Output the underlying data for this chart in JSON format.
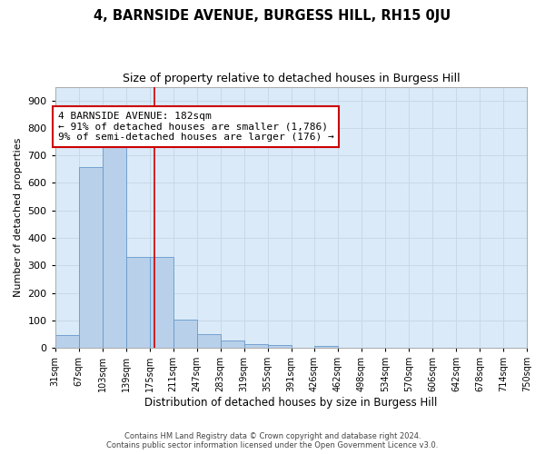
{
  "title": "4, BARNSIDE AVENUE, BURGESS HILL, RH15 0JU",
  "subtitle": "Size of property relative to detached houses in Burgess Hill",
  "xlabel": "Distribution of detached houses by size in Burgess Hill",
  "ylabel": "Number of detached properties",
  "footer_line1": "Contains HM Land Registry data © Crown copyright and database right 2024.",
  "footer_line2": "Contains public sector information licensed under the Open Government Licence v3.0.",
  "annotation_line1": "4 BARNSIDE AVENUE: 182sqm",
  "annotation_line2": "← 91% of detached houses are smaller (1,786)",
  "annotation_line3": "9% of semi-detached houses are larger (176) →",
  "bar_edges": [
    31,
    67,
    103,
    139,
    175,
    211,
    247,
    283,
    319,
    355,
    391,
    426,
    462,
    498,
    534,
    570,
    606,
    642,
    678,
    714,
    750
  ],
  "bar_heights": [
    48,
    658,
    736,
    330,
    330,
    103,
    50,
    25,
    15,
    10,
    0,
    8,
    0,
    0,
    0,
    0,
    0,
    0,
    0,
    0
  ],
  "bar_color": "#b8d0ea",
  "bar_edge_color": "#6699cc",
  "vline_x": 182,
  "vline_color": "#cc0000",
  "ylim": [
    0,
    950
  ],
  "yticks": [
    0,
    100,
    200,
    300,
    400,
    500,
    600,
    700,
    800,
    900
  ],
  "grid_color": "#c8d8e8",
  "bg_color": "#daeaf8",
  "annotation_fontsize": 8,
  "annotation_box_color": "#cc0000",
  "title_fontsize": 10.5,
  "subtitle_fontsize": 9
}
